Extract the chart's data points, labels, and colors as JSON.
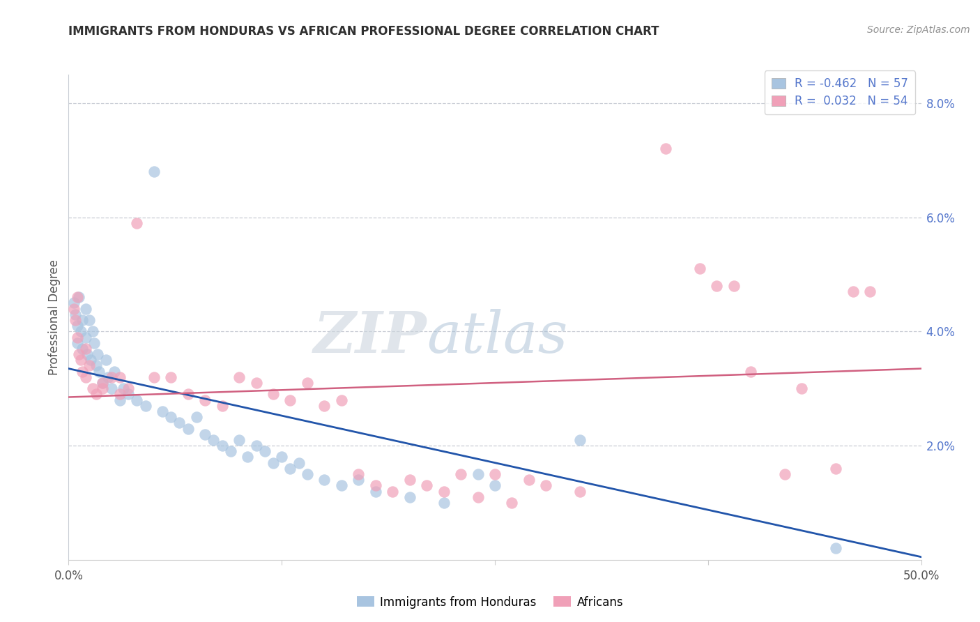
{
  "title": "IMMIGRANTS FROM HONDURAS VS AFRICAN PROFESSIONAL DEGREE CORRELATION CHART",
  "source": "Source: ZipAtlas.com",
  "ylabel": "Professional Degree",
  "xlim": [
    0.0,
    50.0
  ],
  "ylim": [
    0.0,
    8.5
  ],
  "watermark_zip": "ZIP",
  "watermark_atlas": "atlas",
  "legend_blue_r": "-0.462",
  "legend_blue_n": "57",
  "legend_pink_r": "0.032",
  "legend_pink_n": "54",
  "blue_color": "#a8c4e0",
  "pink_color": "#f0a0b8",
  "line_blue_color": "#2255aa",
  "line_pink_color": "#d06080",
  "title_color": "#303030",
  "source_color": "#909090",
  "right_tick_color": "#5577cc",
  "grid_color": "#c8ccd4",
  "background_color": "#ffffff",
  "blue_scatter": [
    [
      0.3,
      4.5
    ],
    [
      0.4,
      4.3
    ],
    [
      0.5,
      4.1
    ],
    [
      0.5,
      3.8
    ],
    [
      0.6,
      4.6
    ],
    [
      0.7,
      4.0
    ],
    [
      0.8,
      4.2
    ],
    [
      0.8,
      3.7
    ],
    [
      1.0,
      4.4
    ],
    [
      1.0,
      3.9
    ],
    [
      1.1,
      3.6
    ],
    [
      1.2,
      4.2
    ],
    [
      1.3,
      3.5
    ],
    [
      1.4,
      4.0
    ],
    [
      1.5,
      3.8
    ],
    [
      1.6,
      3.4
    ],
    [
      1.7,
      3.6
    ],
    [
      1.8,
      3.3
    ],
    [
      2.0,
      3.1
    ],
    [
      2.2,
      3.5
    ],
    [
      2.3,
      3.2
    ],
    [
      2.5,
      3.0
    ],
    [
      2.7,
      3.3
    ],
    [
      3.0,
      2.8
    ],
    [
      3.2,
      3.0
    ],
    [
      3.5,
      2.9
    ],
    [
      4.0,
      2.8
    ],
    [
      4.5,
      2.7
    ],
    [
      5.0,
      6.8
    ],
    [
      5.5,
      2.6
    ],
    [
      6.0,
      2.5
    ],
    [
      6.5,
      2.4
    ],
    [
      7.0,
      2.3
    ],
    [
      7.5,
      2.5
    ],
    [
      8.0,
      2.2
    ],
    [
      8.5,
      2.1
    ],
    [
      9.0,
      2.0
    ],
    [
      9.5,
      1.9
    ],
    [
      10.0,
      2.1
    ],
    [
      10.5,
      1.8
    ],
    [
      11.0,
      2.0
    ],
    [
      11.5,
      1.9
    ],
    [
      12.0,
      1.7
    ],
    [
      12.5,
      1.8
    ],
    [
      13.0,
      1.6
    ],
    [
      13.5,
      1.7
    ],
    [
      14.0,
      1.5
    ],
    [
      15.0,
      1.4
    ],
    [
      16.0,
      1.3
    ],
    [
      17.0,
      1.4
    ],
    [
      18.0,
      1.2
    ],
    [
      20.0,
      1.1
    ],
    [
      22.0,
      1.0
    ],
    [
      24.0,
      1.5
    ],
    [
      25.0,
      1.3
    ],
    [
      30.0,
      2.1
    ],
    [
      45.0,
      0.2
    ]
  ],
  "pink_scatter": [
    [
      0.3,
      4.4
    ],
    [
      0.4,
      4.2
    ],
    [
      0.5,
      3.9
    ],
    [
      0.6,
      3.6
    ],
    [
      0.7,
      3.5
    ],
    [
      0.8,
      3.3
    ],
    [
      1.0,
      3.2
    ],
    [
      1.2,
      3.4
    ],
    [
      1.4,
      3.0
    ],
    [
      1.6,
      2.9
    ],
    [
      2.0,
      3.1
    ],
    [
      2.5,
      3.2
    ],
    [
      3.0,
      2.9
    ],
    [
      3.5,
      3.0
    ],
    [
      4.0,
      5.9
    ],
    [
      5.0,
      3.2
    ],
    [
      6.0,
      3.2
    ],
    [
      7.0,
      2.9
    ],
    [
      8.0,
      2.8
    ],
    [
      9.0,
      2.7
    ],
    [
      10.0,
      3.2
    ],
    [
      11.0,
      3.1
    ],
    [
      12.0,
      2.9
    ],
    [
      13.0,
      2.8
    ],
    [
      14.0,
      3.1
    ],
    [
      15.0,
      2.7
    ],
    [
      16.0,
      2.8
    ],
    [
      17.0,
      1.5
    ],
    [
      18.0,
      1.3
    ],
    [
      19.0,
      1.2
    ],
    [
      20.0,
      1.4
    ],
    [
      21.0,
      1.3
    ],
    [
      22.0,
      1.2
    ],
    [
      23.0,
      1.5
    ],
    [
      24.0,
      1.1
    ],
    [
      25.0,
      1.5
    ],
    [
      26.0,
      1.0
    ],
    [
      27.0,
      1.4
    ],
    [
      28.0,
      1.3
    ],
    [
      30.0,
      1.2
    ],
    [
      35.0,
      7.2
    ],
    [
      37.0,
      5.1
    ],
    [
      38.0,
      4.8
    ],
    [
      39.0,
      4.8
    ],
    [
      40.0,
      3.3
    ],
    [
      42.0,
      1.5
    ],
    [
      43.0,
      3.0
    ],
    [
      45.0,
      1.6
    ],
    [
      46.0,
      4.7
    ],
    [
      47.0,
      4.7
    ],
    [
      0.5,
      4.6
    ],
    [
      1.0,
      3.7
    ],
    [
      2.0,
      3.0
    ],
    [
      3.0,
      3.2
    ]
  ],
  "blue_line_x": [
    0,
    50
  ],
  "blue_line_y": [
    3.35,
    0.05
  ],
  "pink_line_x": [
    0,
    50
  ],
  "pink_line_y": [
    2.85,
    3.35
  ]
}
